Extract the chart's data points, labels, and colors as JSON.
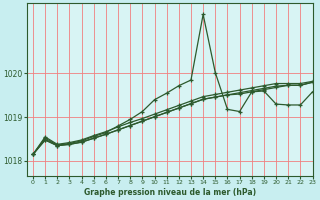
{
  "title": "Graphe pression niveau de la mer (hPa)",
  "bg_color": "#c8eef0",
  "plot_bg_color": "#d8f4f4",
  "grid_color": "#f08080",
  "line_color": "#2d5a2d",
  "xlim": [
    -0.5,
    23
  ],
  "ylim": [
    1017.65,
    1021.6
  ],
  "yticks": [
    1018,
    1019,
    1020
  ],
  "xticks": [
    0,
    1,
    2,
    3,
    4,
    5,
    6,
    7,
    8,
    9,
    10,
    11,
    12,
    13,
    14,
    15,
    16,
    17,
    18,
    19,
    20,
    21,
    22,
    23
  ],
  "series": [
    [
      1018.15,
      1018.55,
      1018.38,
      1018.42,
      1018.48,
      1018.58,
      1018.67,
      1018.78,
      1018.88,
      1018.97,
      1019.07,
      1019.17,
      1019.27,
      1019.37,
      1019.47,
      1019.52,
      1019.57,
      1019.62,
      1019.67,
      1019.72,
      1019.77,
      1019.77,
      1019.77,
      1019.82
    ],
    [
      1018.15,
      1018.48,
      1018.35,
      1018.38,
      1018.43,
      1018.52,
      1018.61,
      1018.71,
      1018.81,
      1018.91,
      1019.01,
      1019.11,
      1019.21,
      1019.31,
      1019.41,
      1019.46,
      1019.51,
      1019.56,
      1019.61,
      1019.66,
      1019.71,
      1019.73,
      1019.73,
      1019.8
    ],
    [
      1018.15,
      1018.48,
      1018.35,
      1018.38,
      1018.43,
      1018.52,
      1018.61,
      1018.71,
      1018.81,
      1018.91,
      1019.01,
      1019.11,
      1019.21,
      1019.31,
      1019.41,
      1019.46,
      1019.51,
      1019.53,
      1019.58,
      1019.63,
      1019.68,
      1019.73,
      1019.73,
      1019.8
    ],
    [
      1018.15,
      1018.52,
      1018.36,
      1018.4,
      1018.46,
      1018.56,
      1018.65,
      1018.8,
      1018.95,
      1019.13,
      1019.4,
      1019.55,
      1019.72,
      1019.85,
      1021.35,
      1020.02,
      1019.18,
      1019.13,
      1019.58,
      1019.6,
      1019.3,
      1019.28,
      1019.28,
      1019.58
    ]
  ]
}
